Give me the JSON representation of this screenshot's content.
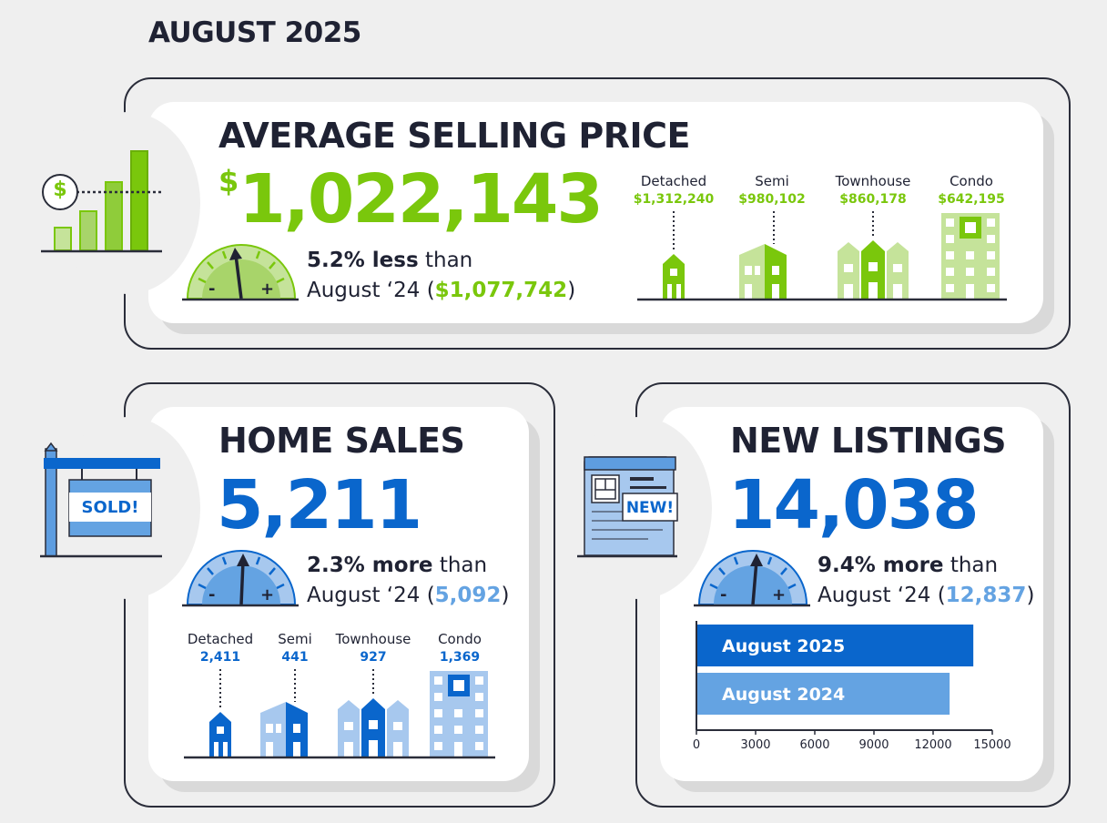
{
  "header": {
    "month": "AUGUST 2025"
  },
  "avg_price": {
    "title": "AVERAGE SELLING PRICE",
    "currency_symbol": "$",
    "value": "1,022,143",
    "change_strong": "5.2% less",
    "change_weak": "than",
    "prev_label": "August ‘24 (",
    "prev_value": "$1,077,742",
    "prev_close": ")",
    "types": [
      {
        "label": "Detached",
        "value": "$1,312,240"
      },
      {
        "label": "Semi",
        "value": "$980,102"
      },
      {
        "label": "Townhouse",
        "value": "$860,178"
      },
      {
        "label": "Condo",
        "value": "$642,195"
      }
    ],
    "icon_symbol": "$"
  },
  "home_sales": {
    "title": "HOME SALES",
    "value": "5,211",
    "change_strong": "2.3% more",
    "change_weak": "than",
    "prev_label": "August ‘24 (",
    "prev_value": "5,092",
    "prev_close": ")",
    "types": [
      {
        "label": "Detached",
        "value": "2,411"
      },
      {
        "label": "Semi",
        "value": "441"
      },
      {
        "label": "Townhouse",
        "value": "927"
      },
      {
        "label": "Condo",
        "value": "1,369"
      }
    ],
    "sign_text": "SOLD!"
  },
  "new_listings": {
    "title": "NEW LISTINGS",
    "value": "14,038",
    "change_strong": "9.4% more",
    "change_weak": "than",
    "prev_label": "August ‘24 (",
    "prev_value": "12,837",
    "prev_close": ")",
    "badge_text": "NEW!"
  },
  "gauge": {
    "minus": "-",
    "plus": "+"
  },
  "colors": {
    "green": "#7ac70c",
    "green_light": "#c5e39a",
    "green_mid": "#a8d46a",
    "blue": "#0a66cc",
    "blue_light": "#a7c8ee",
    "blue_mid": "#64a3e2",
    "dark": "#2a2d3a"
  },
  "chart_data": {
    "type": "bar",
    "orientation": "horizontal",
    "categories": [
      "August 2025",
      "August 2024"
    ],
    "values": [
      14038,
      12837
    ],
    "xlim": [
      0,
      15000
    ],
    "xticks": [
      0,
      3000,
      6000,
      9000,
      12000,
      15000
    ],
    "title": "",
    "xlabel": "",
    "ylabel": ""
  }
}
